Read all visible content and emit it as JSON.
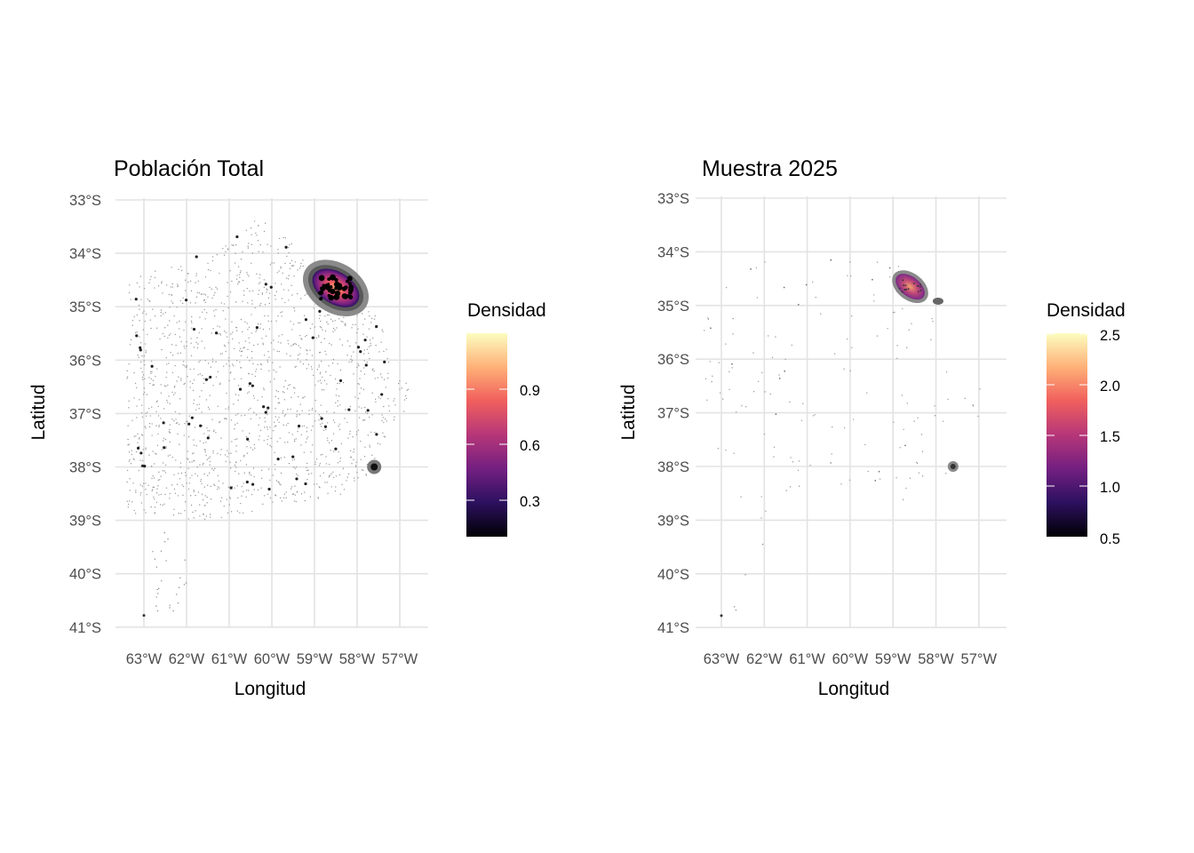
{
  "chart_data": [
    {
      "type": "heatmap",
      "subtype": "2d-density-map",
      "title": "Población Total",
      "xlabel": "Longitud",
      "ylabel": "Latitud",
      "x_ticks": [
        "63°W",
        "62°W",
        "61°W",
        "60°W",
        "59°W",
        "58°W",
        "57°W"
      ],
      "y_ticks": [
        "33°S",
        "34°S",
        "35°S",
        "36°S",
        "37°S",
        "38°S",
        "39°S",
        "40°S",
        "41°S"
      ],
      "xlim": [
        -63.6,
        -56.3
      ],
      "ylim": [
        -41,
        -33
      ],
      "legend": {
        "title": "Densidad",
        "ticks": [
          "0.9",
          "0.6",
          "0.3"
        ],
        "range": [
          0,
          1.2
        ],
        "position": "right",
        "palette": "magma"
      },
      "hotspots": [
        {
          "lon": -58.5,
          "lat": -34.7,
          "level": "max"
        },
        {
          "lon": -57.6,
          "lat": -38.0,
          "level": "low"
        }
      ]
    },
    {
      "type": "heatmap",
      "subtype": "2d-density-map",
      "title": "Muestra 2025",
      "xlabel": "Longitud",
      "ylabel": "Latitud",
      "x_ticks": [
        "63°W",
        "62°W",
        "61°W",
        "60°W",
        "59°W",
        "58°W",
        "57°W"
      ],
      "y_ticks": [
        "33°S",
        "34°S",
        "35°S",
        "36°S",
        "37°S",
        "38°S",
        "39°S",
        "40°S",
        "41°S"
      ],
      "xlim": [
        -63.6,
        -56.3
      ],
      "ylim": [
        -41,
        -33
      ],
      "legend": {
        "title": "Densidad",
        "ticks": [
          "2.5",
          "2.0",
          "1.5",
          "1.0",
          "0.5"
        ],
        "range": [
          0.5,
          2.5
        ],
        "position": "right",
        "palette": "magma"
      },
      "hotspots": [
        {
          "lon": -58.7,
          "lat": -34.7,
          "level": "max"
        },
        {
          "lon": -58.0,
          "lat": -34.9,
          "level": "medium"
        },
        {
          "lon": -57.6,
          "lat": -38.0,
          "level": "low"
        }
      ]
    }
  ],
  "colors": {
    "magma": [
      "#000004",
      "#2D1160",
      "#721F81",
      "#B63679",
      "#F1605D",
      "#FEAF77",
      "#FCFDBF"
    ],
    "grid": "#e3e3e3"
  }
}
